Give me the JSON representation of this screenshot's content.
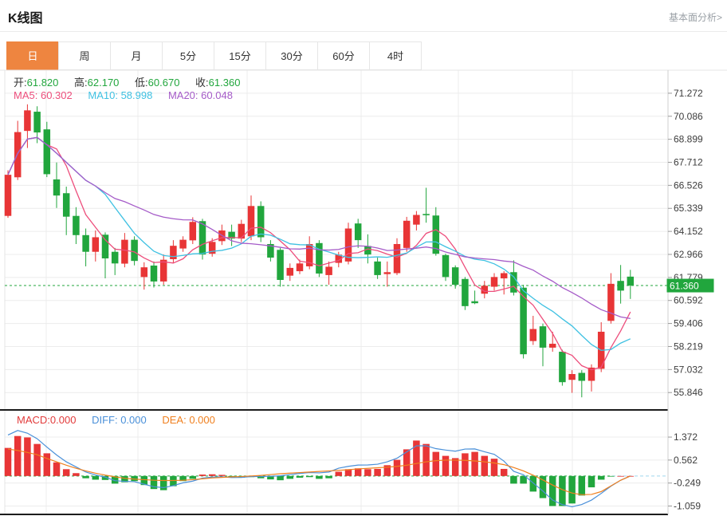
{
  "header": {
    "title": "K线图",
    "analysis_link": "基本面分析>"
  },
  "tabs": {
    "items": [
      "日",
      "周",
      "月",
      "5分",
      "15分",
      "30分",
      "60分",
      "4时"
    ],
    "active_index": 0
  },
  "quote": {
    "open_label": "开:",
    "open_value": "61.820",
    "high_label": "高:",
    "high_value": "62.170",
    "low_label": "低:",
    "low_value": "60.670",
    "close_label": "收:",
    "close_value": "61.360"
  },
  "ma_legend": {
    "ma5_label": "MA5:",
    "ma5_value": "60.302",
    "ma10_label": "MA10:",
    "ma10_value": "58.998",
    "ma20_label": "MA20:",
    "ma20_value": "60.048"
  },
  "macd_legend": {
    "macd_label": "MACD:",
    "macd_value": "0.000",
    "diff_label": "DIFF:",
    "diff_value": "0.000",
    "dea_label": "DEA:",
    "dea_value": "0.000"
  },
  "colors": {
    "up": "#e83536",
    "down": "#21a63d",
    "accent": "#ee8540",
    "ma5": "#ed4e7c",
    "ma10": "#3fc1e2",
    "ma20": "#a55bc8",
    "diff": "#4a90d9",
    "dea": "#f0801f",
    "grid": "#ececec",
    "border": "#e4e4e4",
    "axis_line": "#cfcfcf",
    "axis_text": "#3c3c3c",
    "separator": "#1b1b1b",
    "badge_bg": "#21a63d",
    "badge_text": "#ffffff",
    "diff_ext": "#9fd8ee",
    "link_text": "#9aa0a6"
  },
  "chart_data": [
    {
      "type": "candlestick",
      "panel": "main",
      "title": "K线图 (日)",
      "legend": [
        "MA5",
        "MA10",
        "MA20"
      ],
      "grid": true,
      "y_axis_side": "right",
      "y_ticks": [
        71.272,
        70.086,
        68.899,
        67.712,
        66.526,
        65.339,
        64.152,
        62.966,
        61.779,
        60.592,
        59.406,
        58.219,
        57.032,
        55.846
      ],
      "y_range": [
        54.95,
        72.46
      ],
      "x_gridlines": [
        58,
        173,
        310,
        453,
        575,
        718
      ],
      "price_line": {
        "value": 61.36,
        "label": "61.360"
      },
      "ma_periods": [
        5,
        10,
        20
      ],
      "candles_format": [
        "open",
        "high",
        "low",
        "close"
      ],
      "candles": [
        [
          64.95,
          67.3,
          64.85,
          67.07
        ],
        [
          66.94,
          69.85,
          66.8,
          69.27
        ],
        [
          69.33,
          70.7,
          68.45,
          70.39
        ],
        [
          70.32,
          70.6,
          68.7,
          69.25
        ],
        [
          69.41,
          69.8,
          66.95,
          67.1
        ],
        [
          66.83,
          67.7,
          65.36,
          66.0
        ],
        [
          66.12,
          66.46,
          63.96,
          64.91
        ],
        [
          64.95,
          65.4,
          63.5,
          63.96
        ],
        [
          63.96,
          64.3,
          62.35,
          63.1
        ],
        [
          63.1,
          64.2,
          62.6,
          63.85
        ],
        [
          63.98,
          64.1,
          61.73,
          62.76
        ],
        [
          63.1,
          63.3,
          61.9,
          62.5
        ],
        [
          62.49,
          64.07,
          62.3,
          63.72
        ],
        [
          63.72,
          63.9,
          62.4,
          62.63
        ],
        [
          61.8,
          62.56,
          61.15,
          62.3
        ],
        [
          62.39,
          62.6,
          61.26,
          61.57
        ],
        [
          61.57,
          62.96,
          61.4,
          62.69
        ],
        [
          62.72,
          63.7,
          62.5,
          63.41
        ],
        [
          63.27,
          63.9,
          63.1,
          63.72
        ],
        [
          63.69,
          64.88,
          63.5,
          64.64
        ],
        [
          64.68,
          64.8,
          62.7,
          62.96
        ],
        [
          63.0,
          63.8,
          62.85,
          63.61
        ],
        [
          63.65,
          64.5,
          63.45,
          64.2
        ],
        [
          64.13,
          64.5,
          63.4,
          63.78
        ],
        [
          63.78,
          64.75,
          63.6,
          64.54
        ],
        [
          63.9,
          66.0,
          63.7,
          65.46
        ],
        [
          65.46,
          65.7,
          63.6,
          63.85
        ],
        [
          63.5,
          63.7,
          62.6,
          62.8
        ],
        [
          63.2,
          63.3,
          61.3,
          61.65
        ],
        [
          61.87,
          62.5,
          61.6,
          62.27
        ],
        [
          62.1,
          62.7,
          61.95,
          62.5
        ],
        [
          62.35,
          63.9,
          62.2,
          63.5
        ],
        [
          63.55,
          63.7,
          61.8,
          61.98
        ],
        [
          61.9,
          62.6,
          61.4,
          62.33
        ],
        [
          62.53,
          63.1,
          62.3,
          62.95
        ],
        [
          62.6,
          64.6,
          62.45,
          64.3
        ],
        [
          64.56,
          64.8,
          63.3,
          63.7
        ],
        [
          63.4,
          64.0,
          62.5,
          62.96
        ],
        [
          62.6,
          62.8,
          61.7,
          61.9
        ],
        [
          61.95,
          62.6,
          61.3,
          62.05
        ],
        [
          62.0,
          63.8,
          61.9,
          63.5
        ],
        [
          63.3,
          64.9,
          63.1,
          64.7
        ],
        [
          64.5,
          65.2,
          64.2,
          65.0
        ],
        [
          65.05,
          66.4,
          64.6,
          65.0
        ],
        [
          64.97,
          65.4,
          62.9,
          63.0
        ],
        [
          62.93,
          63.0,
          61.6,
          61.8
        ],
        [
          62.3,
          62.4,
          61.2,
          61.4
        ],
        [
          61.7,
          61.8,
          60.1,
          60.3
        ],
        [
          60.55,
          61.1,
          60.4,
          60.45
        ],
        [
          60.94,
          61.6,
          60.7,
          61.35
        ],
        [
          61.3,
          62.0,
          61.1,
          61.8
        ],
        [
          61.73,
          62.1,
          60.9,
          62.0
        ],
        [
          62.05,
          62.66,
          60.85,
          61.0
        ],
        [
          61.25,
          61.4,
          57.6,
          57.82
        ],
        [
          58.5,
          59.8,
          58.3,
          59.12
        ],
        [
          59.26,
          59.4,
          57.2,
          58.16
        ],
        [
          58.16,
          58.98,
          57.95,
          58.36
        ],
        [
          57.95,
          58.05,
          56.2,
          56.38
        ],
        [
          56.5,
          57.0,
          55.83,
          56.8
        ],
        [
          56.86,
          57.0,
          55.6,
          56.45
        ],
        [
          56.45,
          57.3,
          55.9,
          57.13
        ],
        [
          57.07,
          59.47,
          56.9,
          58.98
        ],
        [
          59.54,
          62.0,
          59.4,
          61.45
        ],
        [
          61.6,
          62.42,
          60.43,
          61.1
        ],
        [
          61.82,
          62.17,
          60.67,
          61.36
        ]
      ]
    },
    {
      "type": "bar",
      "panel": "macd",
      "title": "MACD",
      "grid": true,
      "y_axis_side": "right",
      "y_ticks": [
        1.372,
        0.562,
        -0.249,
        -1.059
      ],
      "y_range": [
        -1.355,
        2.33
      ],
      "x_gridlines": [
        58,
        173,
        310,
        453,
        575,
        718
      ],
      "diff_rule": "diff = dea + hist/2",
      "hist": [
        0.99,
        1.41,
        1.36,
        1.13,
        0.8,
        0.48,
        0.24,
        0.1,
        -0.08,
        -0.13,
        -0.14,
        -0.27,
        -0.22,
        -0.18,
        -0.32,
        -0.46,
        -0.5,
        -0.36,
        -0.18,
        -0.1,
        0.05,
        0.06,
        0.04,
        -0.05,
        -0.06,
        -0.04,
        -0.08,
        -0.12,
        -0.15,
        -0.1,
        -0.06,
        -0.04,
        -0.1,
        -0.08,
        0.15,
        0.24,
        0.27,
        0.24,
        0.25,
        0.38,
        0.57,
        0.94,
        1.25,
        1.13,
        0.85,
        0.71,
        0.63,
        0.8,
        0.85,
        0.71,
        0.61,
        0.25,
        -0.27,
        -0.27,
        -0.55,
        -0.78,
        -1.06,
        -1.06,
        -0.97,
        -0.69,
        -0.4,
        -0.13,
        -0.02,
        0.0,
        0.0
      ],
      "dea": [
        0.95,
        0.9,
        0.83,
        0.75,
        0.62,
        0.5,
        0.38,
        0.27,
        0.18,
        0.1,
        0.03,
        -0.03,
        -0.08,
        -0.11,
        -0.13,
        -0.15,
        -0.16,
        -0.16,
        -0.15,
        -0.13,
        -0.1,
        -0.07,
        -0.05,
        -0.03,
        -0.02,
        0.0,
        0.02,
        0.05,
        0.08,
        0.1,
        0.12,
        0.14,
        0.16,
        0.18,
        0.2,
        0.22,
        0.25,
        0.27,
        0.29,
        0.31,
        0.34,
        0.38,
        0.44,
        0.5,
        0.54,
        0.56,
        0.56,
        0.55,
        0.53,
        0.5,
        0.46,
        0.4,
        0.3,
        0.18,
        0.03,
        -0.14,
        -0.32,
        -0.48,
        -0.6,
        -0.66,
        -0.65,
        -0.55,
        -0.35,
        -0.15,
        0.0
      ]
    }
  ]
}
